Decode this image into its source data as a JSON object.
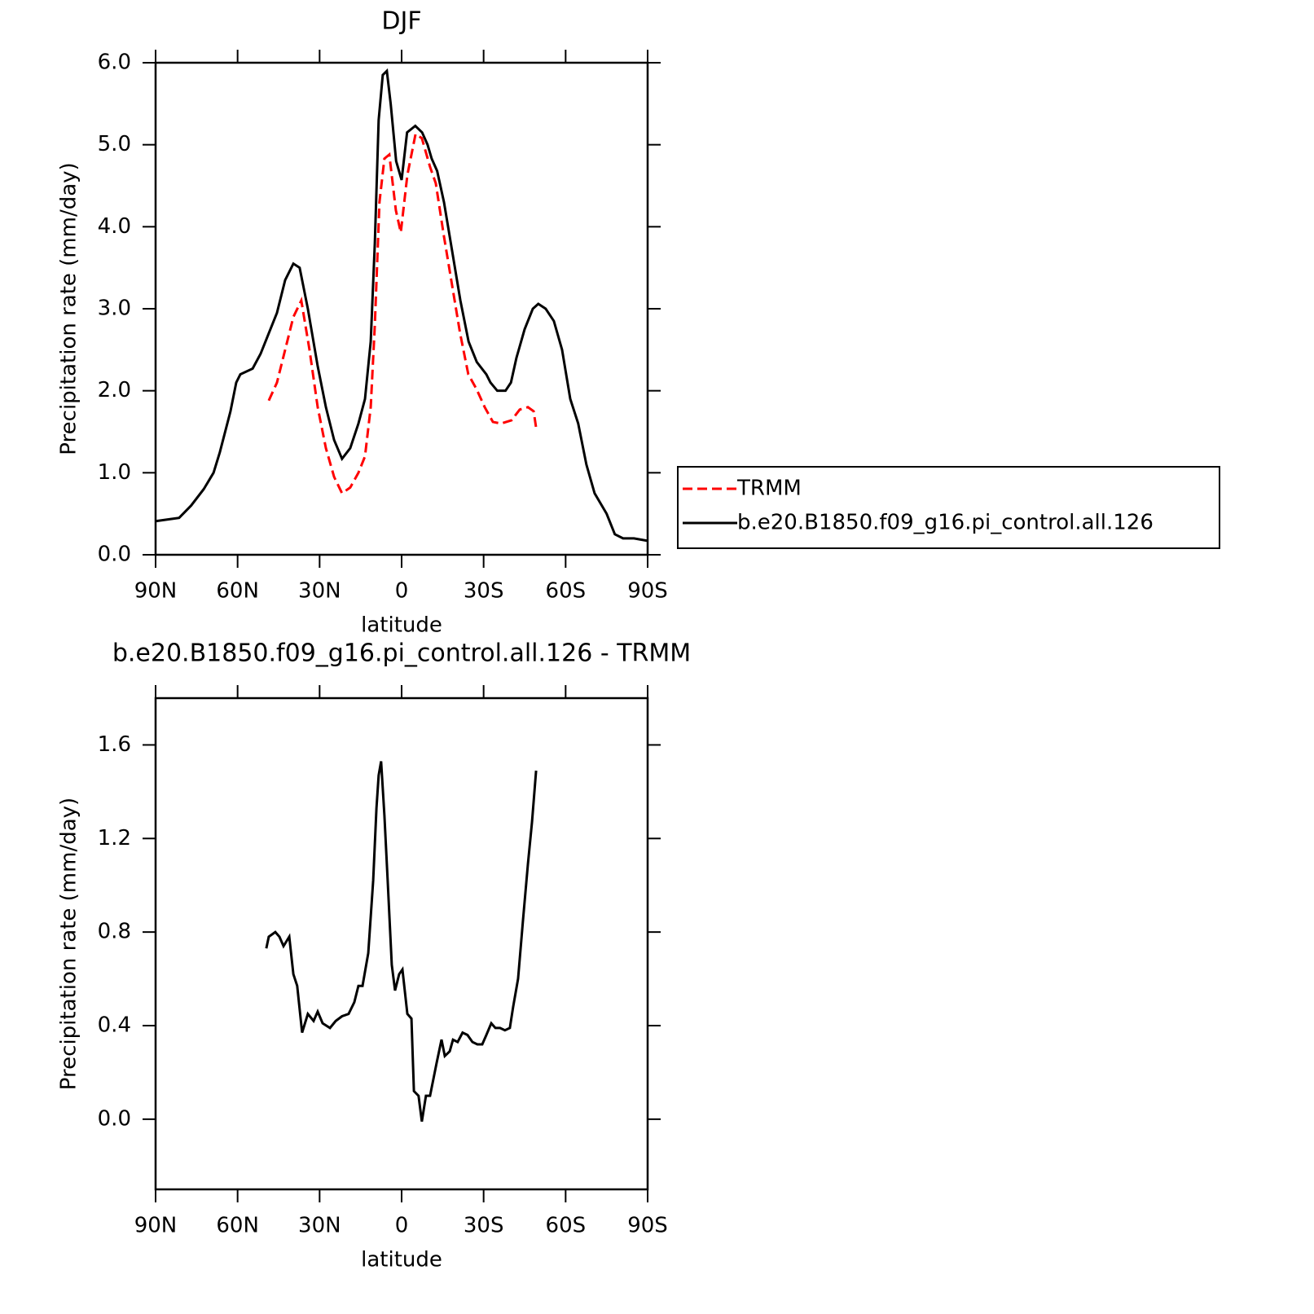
{
  "chart_data": [
    {
      "type": "line",
      "title": "DJF",
      "x_label": "latitude",
      "y_label": "Precipitation rate (mm/day)",
      "xlim": [
        90,
        -90
      ],
      "xticks": [
        {
          "value": 90,
          "label": "90N"
        },
        {
          "value": 60,
          "label": "60N"
        },
        {
          "value": 30,
          "label": "30N"
        },
        0,
        {
          "value": -30,
          "label": "30S"
        },
        {
          "value": -60,
          "label": "60S"
        },
        {
          "value": -90,
          "label": "90S"
        }
      ],
      "ylim": [
        0,
        6
      ],
      "yticks": [
        {
          "value": 0,
          "label": "0.0"
        },
        {
          "value": 1,
          "label": "1.0"
        },
        {
          "value": 2,
          "label": "2.0"
        },
        {
          "value": 3,
          "label": "3.0"
        },
        {
          "value": 4,
          "label": "4.0"
        },
        {
          "value": 5,
          "label": "5.0"
        },
        {
          "value": 6,
          "label": "6.0"
        }
      ],
      "legend_position": "right",
      "series": [
        {
          "name": "TRMM",
          "color": "#ff0000",
          "linestyle": "dashed",
          "x": [
            48.6,
            45.6,
            42.6,
            39.6,
            36.7,
            33.7,
            30.7,
            27.7,
            24.7,
            21.8,
            18.8,
            15.8,
            13.4,
            11.3,
            9.8,
            8.1,
            6.3,
            4.5,
            2.1,
            0.3,
            -2.1,
            -5.1,
            -7.4,
            -10.4,
            -12.5,
            -15.5,
            -18.5,
            -21.4,
            -24.4,
            -27.4,
            -30.4,
            -33.4,
            -36.3,
            -40.2,
            -43.2,
            -46.2,
            -48.3,
            -49.2
          ],
          "values": [
            1.88,
            2.1,
            2.5,
            2.9,
            3.1,
            2.5,
            1.8,
            1.3,
            0.95,
            0.75,
            0.82,
            1.0,
            1.2,
            1.8,
            2.8,
            4.3,
            4.83,
            4.88,
            4.2,
            3.93,
            4.63,
            5.13,
            5.08,
            4.73,
            4.53,
            3.88,
            3.28,
            2.7,
            2.2,
            2.02,
            1.8,
            1.62,
            1.6,
            1.64,
            1.77,
            1.8,
            1.75,
            1.55
          ]
        },
        {
          "name": "b.e20.B1850.f09_g16.pi_control.all.126",
          "color": "#000000",
          "linestyle": "solid",
          "x": [
            90,
            81.4,
            77,
            72.4,
            68.8,
            66.5,
            62.6,
            60.5,
            59,
            54.5,
            51.6,
            48.6,
            45.6,
            42.6,
            39.6,
            37.3,
            34.3,
            30.7,
            27.7,
            24.7,
            21.8,
            18.8,
            15.8,
            13.4,
            11.3,
            9.8,
            8.4,
            6.9,
            5.4,
            4,
            2,
            0,
            -2,
            -5,
            -7.5,
            -9.5,
            -11,
            -13,
            -15.5,
            -18.5,
            -21.5,
            -24.5,
            -27.5,
            -31,
            -32.5,
            -35,
            -38,
            -40,
            -42,
            -45,
            -48,
            -50,
            -52.7,
            -55.7,
            -58.7,
            -61.7,
            -64.6,
            -67.6,
            -70.6,
            -75,
            -78,
            -81,
            -85,
            -90
          ],
          "values": [
            0.41,
            0.45,
            0.6,
            0.8,
            1.0,
            1.25,
            1.75,
            2.1,
            2.2,
            2.27,
            2.45,
            2.7,
            2.95,
            3.35,
            3.55,
            3.5,
            3.0,
            2.3,
            1.8,
            1.4,
            1.17,
            1.3,
            1.6,
            1.9,
            2.6,
            3.8,
            5.3,
            5.85,
            5.9,
            5.5,
            4.8,
            4.57,
            5.15,
            5.23,
            5.15,
            5.0,
            4.83,
            4.68,
            4.3,
            3.7,
            3.1,
            2.6,
            2.35,
            2.2,
            2.1,
            2.0,
            2.0,
            2.1,
            2.4,
            2.75,
            3.0,
            3.06,
            3.0,
            2.85,
            2.5,
            1.9,
            1.6,
            1.1,
            0.75,
            0.5,
            0.25,
            0.2,
            0.2,
            0.17
          ]
        }
      ]
    },
    {
      "type": "line",
      "title": "b.e20.B1850.f09_g16.pi_control.all.126 - TRMM",
      "x_label": "latitude",
      "y_label": "Precipitation rate (mm/day)",
      "xlim": [
        90,
        -90
      ],
      "xticks": [
        {
          "value": 90,
          "label": "90N"
        },
        {
          "value": 60,
          "label": "60N"
        },
        {
          "value": 30,
          "label": "30N"
        },
        0,
        {
          "value": -30,
          "label": "30S"
        },
        {
          "value": -60,
          "label": "60S"
        },
        {
          "value": -90,
          "label": "90S"
        }
      ],
      "ylim": [
        -0.3,
        1.8
      ],
      "yticks": [
        {
          "value": 0,
          "label": "0.0"
        },
        {
          "value": 0.4,
          "label": "0.4"
        },
        {
          "value": 0.8,
          "label": "0.8"
        },
        {
          "value": 1.2,
          "label": "1.2"
        },
        {
          "value": 1.6,
          "label": "1.6"
        }
      ],
      "series": [
        {
          "color": "#000000",
          "linestyle": "solid",
          "x": [
            49.5,
            48.6,
            46.2,
            44.7,
            43.2,
            41.1,
            39.6,
            38.2,
            36.4,
            34.3,
            32.2,
            30.7,
            28.9,
            26.2,
            24.1,
            21.8,
            19.4,
            17.3,
            15.8,
            14.3,
            12.2,
            10.4,
            9.2,
            8.4,
            7.5,
            6.3,
            5.1,
            3.6,
            2.4,
            0.9,
            -0.3,
            -2.1,
            -3.6,
            -4.5,
            -6.2,
            -7.4,
            -8.9,
            -10.4,
            -11.6,
            -12.8,
            -14.6,
            -15.8,
            -17.6,
            -18.8,
            -20.5,
            -22.3,
            -24.1,
            -25.9,
            -27.7,
            -29.5,
            -31,
            -32.8,
            -34.3,
            -36,
            -37.8,
            -39.6,
            -40.8,
            -42.6,
            -44.4,
            -46.2,
            -47.7,
            -49.2
          ],
          "values": [
            0.73,
            0.78,
            0.8,
            0.78,
            0.74,
            0.78,
            0.62,
            0.57,
            0.37,
            0.45,
            0.42,
            0.46,
            0.41,
            0.39,
            0.42,
            0.44,
            0.45,
            0.5,
            0.57,
            0.57,
            0.71,
            1.02,
            1.33,
            1.47,
            1.53,
            1.3,
            1.02,
            0.66,
            0.55,
            0.62,
            0.64,
            0.45,
            0.43,
            0.12,
            0.1,
            -0.01,
            0.1,
            0.1,
            0.17,
            0.24,
            0.34,
            0.27,
            0.29,
            0.34,
            0.33,
            0.37,
            0.36,
            0.33,
            0.32,
            0.32,
            0.36,
            0.41,
            0.39,
            0.39,
            0.38,
            0.39,
            0.48,
            0.6,
            0.85,
            1.09,
            1.27,
            1.49
          ]
        }
      ]
    }
  ]
}
